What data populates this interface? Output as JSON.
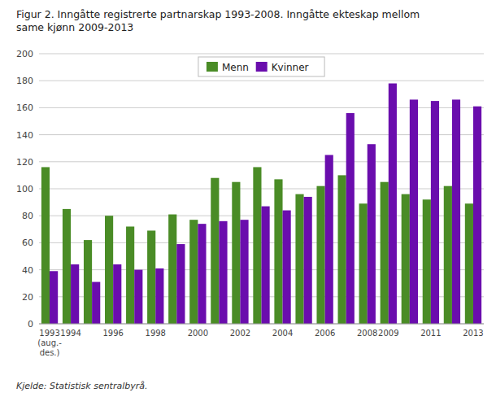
{
  "chart_data": {
    "type": "bar",
    "title": "Figur 2. Inngåtte registrerte partnarskap 1993-2008. Inngåtte ekteskap mellom\nsame kjønn 2009-2013",
    "annotations": [
      "Kjelde: Statistisk sentralbyrå."
    ],
    "categories": [
      "1993\n(aug.-\ndes.)",
      "1994",
      null,
      "1996",
      null,
      "1998",
      null,
      "2000",
      null,
      "2002",
      null,
      "2004",
      null,
      "2006",
      null,
      "2008",
      "2009",
      null,
      "2011",
      null,
      "2013"
    ],
    "series": [
      {
        "name": "Menn",
        "color": "#4a8c26",
        "values": [
          116,
          85,
          62,
          80,
          72,
          69,
          81,
          77,
          108,
          105,
          116,
          107,
          96,
          102,
          110,
          89,
          105,
          96,
          92,
          102,
          89
        ]
      },
      {
        "name": "Kvinner",
        "color": "#6a0dad",
        "values": [
          39,
          44,
          31,
          44,
          40,
          41,
          59,
          74,
          76,
          77,
          87,
          84,
          94,
          125,
          156,
          133,
          178,
          166,
          165,
          166,
          161
        ]
      }
    ],
    "ylim": [
      0,
      200
    ],
    "yticks": [
      0,
      20,
      40,
      60,
      80,
      100,
      120,
      140,
      160,
      180,
      200
    ],
    "grid": true,
    "legend": "upper center"
  }
}
